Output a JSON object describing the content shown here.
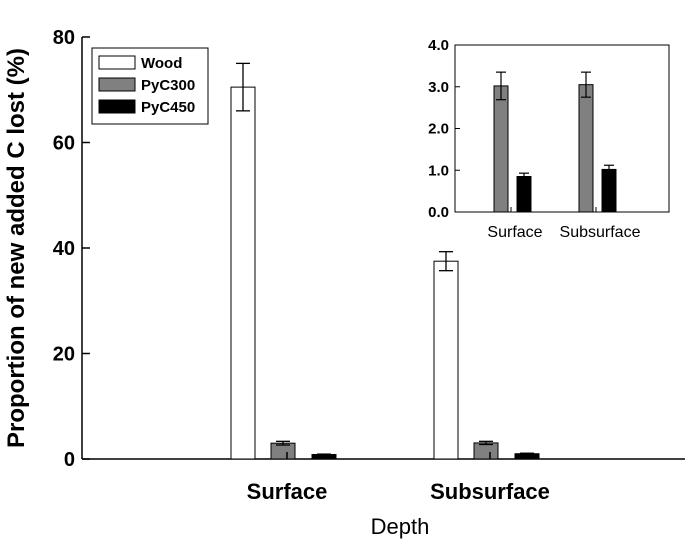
{
  "chart_data": [
    {
      "type": "bar",
      "ylabel": "Proportion of new added C lost (%)",
      "xlabel": "Depth",
      "categories": [
        "Surface",
        "Subsurface"
      ],
      "ylim": [
        0,
        80
      ],
      "yticks": [
        "0",
        "20",
        "40",
        "60",
        "80"
      ],
      "series": [
        {
          "name": "Wood",
          "values": [
            70.5,
            37.5
          ],
          "errors": [
            4.5,
            1.8
          ],
          "color": "#ffffff"
        },
        {
          "name": "PyC300",
          "values": [
            3.0,
            3.05
          ],
          "errors": [
            0.35,
            0.3
          ],
          "color": "#808080"
        },
        {
          "name": "PyC450",
          "values": [
            0.85,
            1.0
          ],
          "errors": [
            0.08,
            0.1
          ],
          "color": "#000000"
        }
      ],
      "legend": "top-left"
    },
    {
      "type": "bar",
      "categories": [
        "Surface",
        "Subsurface"
      ],
      "ylim": [
        0,
        4
      ],
      "yticks": [
        "0.0",
        "1.0",
        "2.0",
        "3.0",
        "4.0"
      ],
      "series": [
        {
          "name": "PyC300",
          "values": [
            3.02,
            3.05
          ],
          "errors": [
            0.33,
            0.3
          ],
          "color": "#808080"
        },
        {
          "name": "PyC450",
          "values": [
            0.85,
            1.02
          ],
          "errors": [
            0.08,
            0.1
          ],
          "color": "#000000"
        }
      ]
    }
  ]
}
